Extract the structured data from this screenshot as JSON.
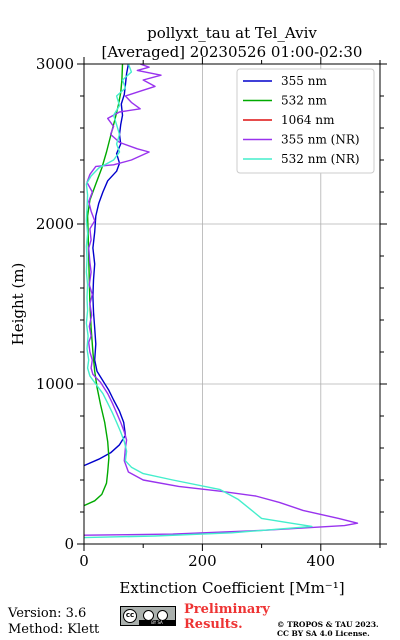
{
  "chart_data": {
    "type": "line",
    "title": "pollyxt_tau at Tel_Aviv",
    "subtitle": "[Averaged] 20230526 01:00-02:30",
    "xlabel": "Extinction Coefficient [Mm⁻¹]",
    "ylabel": "Height (m)",
    "xlim": [
      0,
      500
    ],
    "ylim": [
      0,
      3000
    ],
    "xticks": [
      "0",
      "200",
      "400"
    ],
    "yticks": [
      "0",
      "1000",
      "2000",
      "3000"
    ],
    "grid": true,
    "legend_position": "top-right",
    "series": [
      {
        "name": "355 nm",
        "color": "#0000cc",
        "points": [
          [
            0,
            490
          ],
          [
            25,
            530
          ],
          [
            45,
            570
          ],
          [
            60,
            620
          ],
          [
            70,
            680
          ],
          [
            67,
            760
          ],
          [
            60,
            830
          ],
          [
            50,
            900
          ],
          [
            42,
            960
          ],
          [
            32,
            1020
          ],
          [
            22,
            1080
          ],
          [
            18,
            1150
          ],
          [
            20,
            1250
          ],
          [
            18,
            1350
          ],
          [
            16,
            1450
          ],
          [
            15,
            1550
          ],
          [
            16,
            1650
          ],
          [
            18,
            1750
          ],
          [
            15,
            1850
          ],
          [
            18,
            1950
          ],
          [
            20,
            2050
          ],
          [
            25,
            2130
          ],
          [
            32,
            2200
          ],
          [
            40,
            2270
          ],
          [
            55,
            2330
          ],
          [
            60,
            2380
          ],
          [
            55,
            2440
          ],
          [
            62,
            2500
          ],
          [
            60,
            2560
          ],
          [
            62,
            2620
          ],
          [
            65,
            2680
          ],
          [
            63,
            2750
          ],
          [
            68,
            2810
          ],
          [
            70,
            2870
          ],
          [
            72,
            2940
          ],
          [
            75,
            3000
          ]
        ]
      },
      {
        "name": "532 nm",
        "color": "#00aa00",
        "points": [
          [
            0,
            240
          ],
          [
            18,
            270
          ],
          [
            30,
            310
          ],
          [
            38,
            380
          ],
          [
            40,
            450
          ],
          [
            42,
            540
          ],
          [
            40,
            640
          ],
          [
            35,
            760
          ],
          [
            28,
            870
          ],
          [
            22,
            980
          ],
          [
            18,
            1080
          ],
          [
            15,
            1200
          ],
          [
            12,
            1350
          ],
          [
            10,
            1500
          ],
          [
            9,
            1650
          ],
          [
            8,
            1800
          ],
          [
            7,
            1950
          ],
          [
            6,
            2050
          ],
          [
            10,
            2150
          ],
          [
            20,
            2250
          ],
          [
            30,
            2350
          ],
          [
            38,
            2450
          ],
          [
            45,
            2550
          ],
          [
            52,
            2650
          ],
          [
            58,
            2740
          ],
          [
            62,
            2820
          ],
          [
            64,
            2900
          ],
          [
            65,
            3000
          ]
        ]
      },
      {
        "name": "1064 nm",
        "color": "#dd1111",
        "points": []
      },
      {
        "name": "355 nm (NR)",
        "color": "#9933ee",
        "points": [
          [
            0,
            55
          ],
          [
            150,
            62
          ],
          [
            300,
            85
          ],
          [
            440,
            115
          ],
          [
            462,
            130
          ],
          [
            430,
            160
          ],
          [
            370,
            210
          ],
          [
            330,
            260
          ],
          [
            290,
            300
          ],
          [
            230,
            330
          ],
          [
            160,
            360
          ],
          [
            100,
            400
          ],
          [
            75,
            450
          ],
          [
            68,
            520
          ],
          [
            70,
            600
          ],
          [
            72,
            650
          ],
          [
            68,
            700
          ],
          [
            62,
            760
          ],
          [
            55,
            820
          ],
          [
            48,
            880
          ],
          [
            40,
            940
          ],
          [
            28,
            1010
          ],
          [
            15,
            1060
          ],
          [
            12,
            1100
          ],
          [
            14,
            1150
          ],
          [
            10,
            1200
          ],
          [
            8,
            1260
          ],
          [
            12,
            1300
          ],
          [
            9,
            1360
          ],
          [
            13,
            1430
          ],
          [
            10,
            1500
          ],
          [
            14,
            1560
          ],
          [
            9,
            1620
          ],
          [
            12,
            1700
          ],
          [
            10,
            1760
          ],
          [
            8,
            1850
          ],
          [
            12,
            1900
          ],
          [
            10,
            1970
          ],
          [
            18,
            2020
          ],
          [
            12,
            2080
          ],
          [
            8,
            2140
          ],
          [
            14,
            2200
          ],
          [
            5,
            2260
          ],
          [
            10,
            2310
          ],
          [
            20,
            2360
          ],
          [
            50,
            2370
          ],
          [
            80,
            2400
          ],
          [
            110,
            2450
          ],
          [
            90,
            2470
          ],
          [
            60,
            2510
          ],
          [
            45,
            2560
          ],
          [
            50,
            2610
          ],
          [
            40,
            2660
          ],
          [
            60,
            2700
          ],
          [
            95,
            2720
          ],
          [
            80,
            2760
          ],
          [
            70,
            2800
          ],
          [
            95,
            2830
          ],
          [
            120,
            2860
          ],
          [
            100,
            2900
          ],
          [
            130,
            2930
          ],
          [
            90,
            2960
          ],
          [
            110,
            2980
          ],
          [
            95,
            3000
          ]
        ]
      },
      {
        "name": "532 nm (NR)",
        "color": "#44eecc",
        "points": [
          [
            0,
            40
          ],
          [
            120,
            50
          ],
          [
            250,
            70
          ],
          [
            385,
            110
          ],
          [
            350,
            130
          ],
          [
            300,
            160
          ],
          [
            280,
            220
          ],
          [
            260,
            280
          ],
          [
            230,
            340
          ],
          [
            150,
            400
          ],
          [
            100,
            440
          ],
          [
            80,
            480
          ],
          [
            70,
            520
          ],
          [
            72,
            580
          ],
          [
            68,
            640
          ],
          [
            62,
            700
          ],
          [
            55,
            760
          ],
          [
            48,
            820
          ],
          [
            40,
            880
          ],
          [
            32,
            940
          ],
          [
            20,
            1000
          ],
          [
            10,
            1050
          ],
          [
            6,
            1100
          ],
          [
            8,
            1150
          ],
          [
            5,
            1220
          ],
          [
            7,
            1300
          ],
          [
            4,
            1380
          ],
          [
            6,
            1460
          ],
          [
            5,
            1540
          ],
          [
            6,
            1620
          ],
          [
            4,
            1700
          ],
          [
            5,
            1780
          ],
          [
            4,
            1860
          ],
          [
            6,
            1940
          ],
          [
            4,
            2020
          ],
          [
            5,
            2100
          ],
          [
            6,
            2180
          ],
          [
            4,
            2250
          ],
          [
            12,
            2300
          ],
          [
            25,
            2350
          ],
          [
            50,
            2400
          ],
          [
            60,
            2450
          ],
          [
            55,
            2500
          ],
          [
            60,
            2560
          ],
          [
            55,
            2620
          ],
          [
            50,
            2680
          ],
          [
            60,
            2740
          ],
          [
            55,
            2800
          ],
          [
            70,
            2850
          ],
          [
            65,
            2900
          ],
          [
            80,
            2950
          ],
          [
            75,
            3000
          ]
        ]
      }
    ]
  },
  "footer": {
    "version": "Version: 3.6",
    "method": "Method: Klett",
    "license_badge": "cc",
    "license_badge_sub": "BY SA",
    "preliminary_line1": "Preliminary",
    "preliminary_line2": "Results.",
    "copyright_line1": "© TROPOS & TAU 2023.",
    "copyright_line2": "CC BY SA 4.0 License."
  }
}
